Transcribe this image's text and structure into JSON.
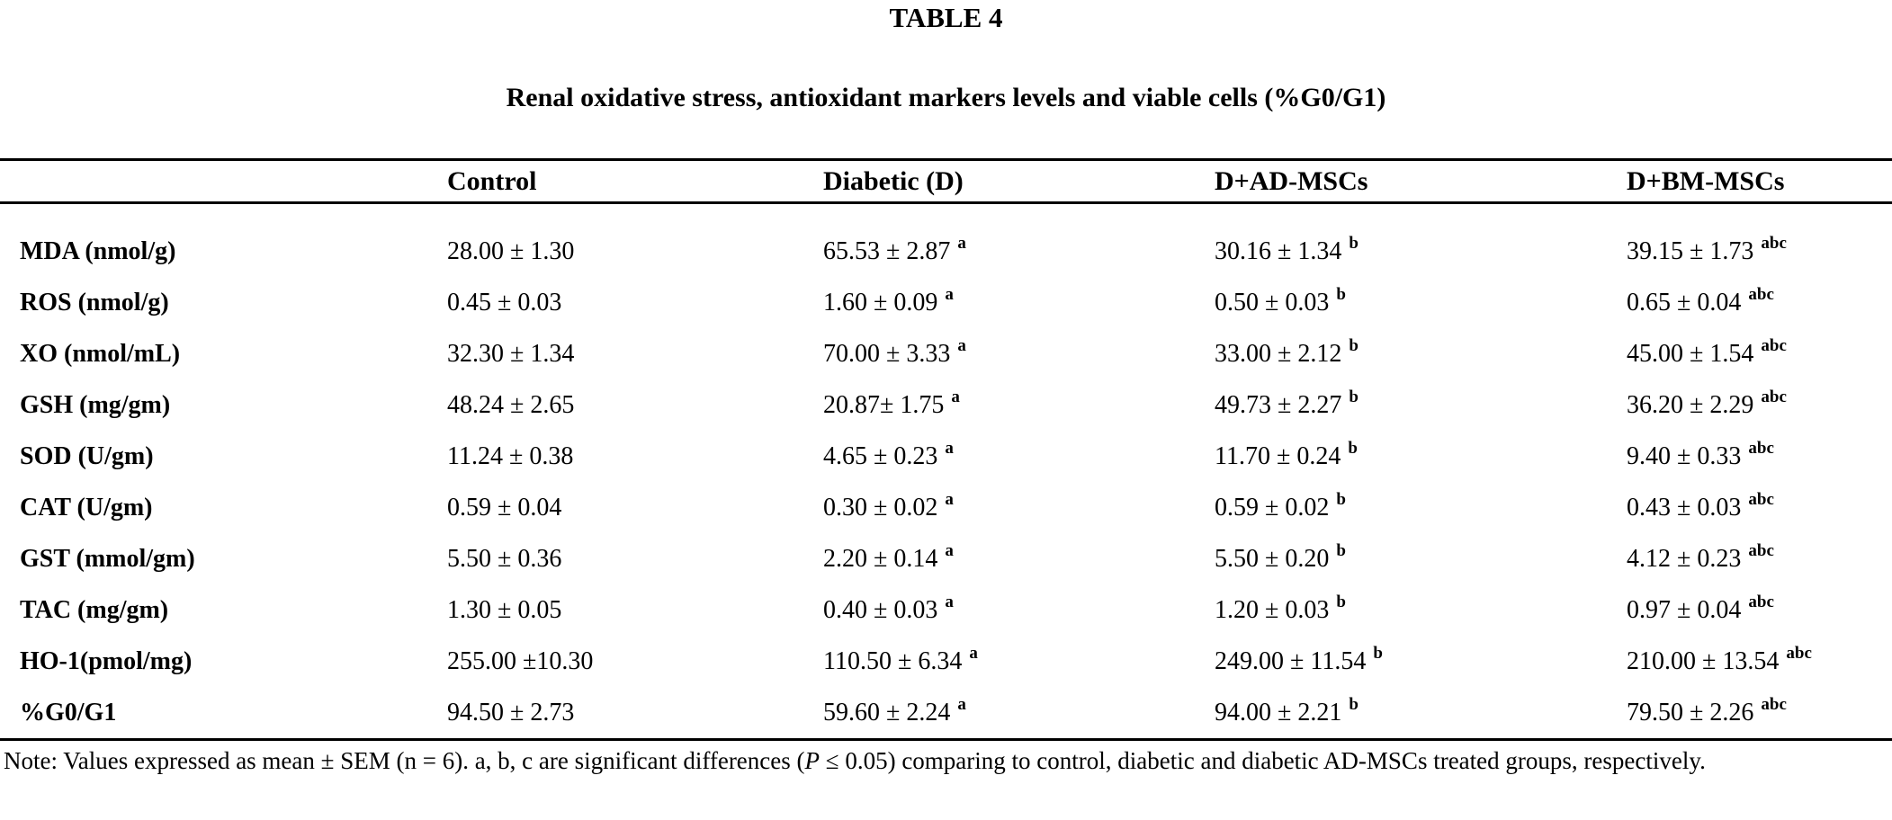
{
  "document": {
    "label": "TABLE 4",
    "title": "Renal oxidative stress, antioxidant markers levels and viable cells (%G0/G1)"
  },
  "colors": {
    "text": "#000000",
    "background": "#ffffff",
    "rule": "#000000"
  },
  "table": {
    "columns": [
      "",
      "Control",
      "Diabetic (D)",
      "D+AD-MSCs",
      "D+BM-MSCs"
    ],
    "rows": [
      {
        "label": "MDA (nmol/g)",
        "control": "28.00 ± 1.30",
        "diabetic": "65.53 ± 2.87",
        "diabetic_sup": "a",
        "ad_mscs": "30.16 ± 1.34",
        "ad_mscs_sup": "b",
        "bm_mscs": "39.15 ± 1.73",
        "bm_mscs_sup": "abc"
      },
      {
        "label": "ROS (nmol/g)",
        "control": "0.45 ± 0.03",
        "diabetic": "1.60 ± 0.09",
        "diabetic_sup": "a",
        "ad_mscs": "0.50 ± 0.03",
        "ad_mscs_sup": "b",
        "bm_mscs": "0.65 ± 0.04",
        "bm_mscs_sup": "abc"
      },
      {
        "label": "XO (nmol/mL)",
        "control": "32.30 ± 1.34",
        "diabetic": "70.00 ± 3.33",
        "diabetic_sup": "a",
        "ad_mscs": "33.00 ± 2.12",
        "ad_mscs_sup": "b",
        "bm_mscs": "45.00 ± 1.54",
        "bm_mscs_sup": "abc"
      },
      {
        "label": "GSH (mg/gm)",
        "control": "48.24 ± 2.65",
        "diabetic": "20.87± 1.75",
        "diabetic_sup": "a",
        "ad_mscs": "49.73 ± 2.27",
        "ad_mscs_sup": "b",
        "bm_mscs": "36.20 ± 2.29",
        "bm_mscs_sup": "abc"
      },
      {
        "label": "SOD (U/gm)",
        "control": "11.24 ± 0.38",
        "diabetic": "4.65 ± 0.23",
        "diabetic_sup": "a",
        "ad_mscs": "11.70 ± 0.24",
        "ad_mscs_sup": "b",
        "bm_mscs": "9.40 ± 0.33",
        "bm_mscs_sup": "abc"
      },
      {
        "label": "CAT (U/gm)",
        "control": "0.59 ± 0.04",
        "diabetic": "0.30 ± 0.02",
        "diabetic_sup": "a",
        "ad_mscs": "0.59 ± 0.02",
        "ad_mscs_sup": "b",
        "bm_mscs": "0.43 ± 0.03",
        "bm_mscs_sup": "abc"
      },
      {
        "label": "GST (mmol/gm)",
        "control": "5.50 ± 0.36",
        "diabetic": "2.20 ± 0.14",
        "diabetic_sup": "a",
        "ad_mscs": "5.50 ± 0.20",
        "ad_mscs_sup": "b",
        "bm_mscs": "4.12 ± 0.23",
        "bm_mscs_sup": "abc"
      },
      {
        "label": "TAC (mg/gm)",
        "control": "1.30 ± 0.05",
        "diabetic": "0.40 ± 0.03",
        "diabetic_sup": "a",
        "ad_mscs": "1.20 ± 0.03",
        "ad_mscs_sup": "b",
        "bm_mscs": "0.97 ± 0.04",
        "bm_mscs_sup": "abc"
      },
      {
        "label": "HO-1(pmol/mg)",
        "control": "255.00 ±10.30",
        "diabetic": "110.50 ± 6.34",
        "diabetic_sup": "a",
        "ad_mscs": "249.00 ± 11.54",
        "ad_mscs_sup": "b",
        "bm_mscs": "210.00 ± 13.54",
        "bm_mscs_sup": "abc"
      },
      {
        "label": "%G0/G1",
        "control": "94.50 ± 2.73",
        "diabetic": "59.60 ± 2.24",
        "diabetic_sup": "a",
        "ad_mscs": "94.00 ± 2.21",
        "ad_mscs_sup": "b",
        "bm_mscs": "79.50 ± 2.26",
        "bm_mscs_sup": "abc"
      }
    ]
  },
  "note": {
    "prefix": "Note: Values expressed as mean ± SEM (n = 6). a, b, c are significant differences (",
    "p_symbol": "P",
    "suffix": " ≤ 0.05) comparing to control, diabetic and diabetic AD-MSCs treated groups, respectively."
  }
}
